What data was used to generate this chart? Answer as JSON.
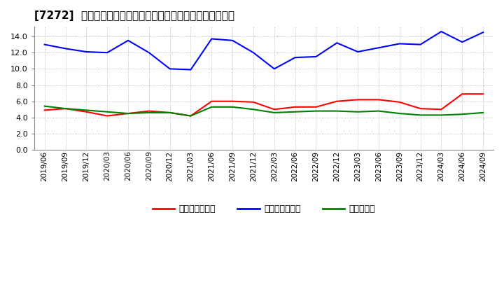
{
  "title": "[7272]  売上債権回転率、買入債務回転率、在庫回転率の推移",
  "dates": [
    "2019/06",
    "2019/09",
    "2019/12",
    "2020/03",
    "2020/06",
    "2020/09",
    "2020/12",
    "2021/03",
    "2021/06",
    "2021/09",
    "2021/12",
    "2022/03",
    "2022/06",
    "2022/09",
    "2022/12",
    "2023/03",
    "2023/06",
    "2023/09",
    "2023/12",
    "2024/03",
    "2024/06",
    "2024/09"
  ],
  "receivables_turnover": [
    4.9,
    5.1,
    4.7,
    4.2,
    4.5,
    4.8,
    4.6,
    4.2,
    6.0,
    6.0,
    5.9,
    5.0,
    5.3,
    5.3,
    6.0,
    6.2,
    6.2,
    5.9,
    5.1,
    5.0,
    6.9,
    6.9
  ],
  "payables_turnover": [
    13.0,
    12.5,
    12.1,
    12.0,
    13.5,
    12.0,
    10.0,
    9.9,
    13.7,
    13.5,
    12.0,
    10.0,
    11.4,
    11.5,
    13.2,
    12.1,
    12.6,
    13.1,
    13.0,
    14.6,
    13.3,
    14.5
  ],
  "inventory_turnover": [
    5.4,
    5.1,
    4.9,
    4.7,
    4.5,
    4.6,
    4.6,
    4.2,
    5.3,
    5.3,
    5.0,
    4.6,
    4.7,
    4.8,
    4.8,
    4.7,
    4.8,
    4.5,
    4.3,
    4.3,
    4.4,
    4.6
  ],
  "receivables_color": "#ff0000",
  "payables_color": "#0000ff",
  "inventory_color": "#008000",
  "yticks": [
    0.0,
    2.0,
    4.0,
    6.0,
    8.0,
    10.0,
    12.0,
    14.0
  ],
  "background_color": "#ffffff",
  "grid_color": "#aaaaaa",
  "legend_labels": [
    "売上債権回転率",
    "買入債務回転率",
    "在庫回転率"
  ],
  "title_fontsize": 11,
  "legend_fontsize": 9,
  "tick_fontsize": 7.5,
  "ytick_fontsize": 8
}
